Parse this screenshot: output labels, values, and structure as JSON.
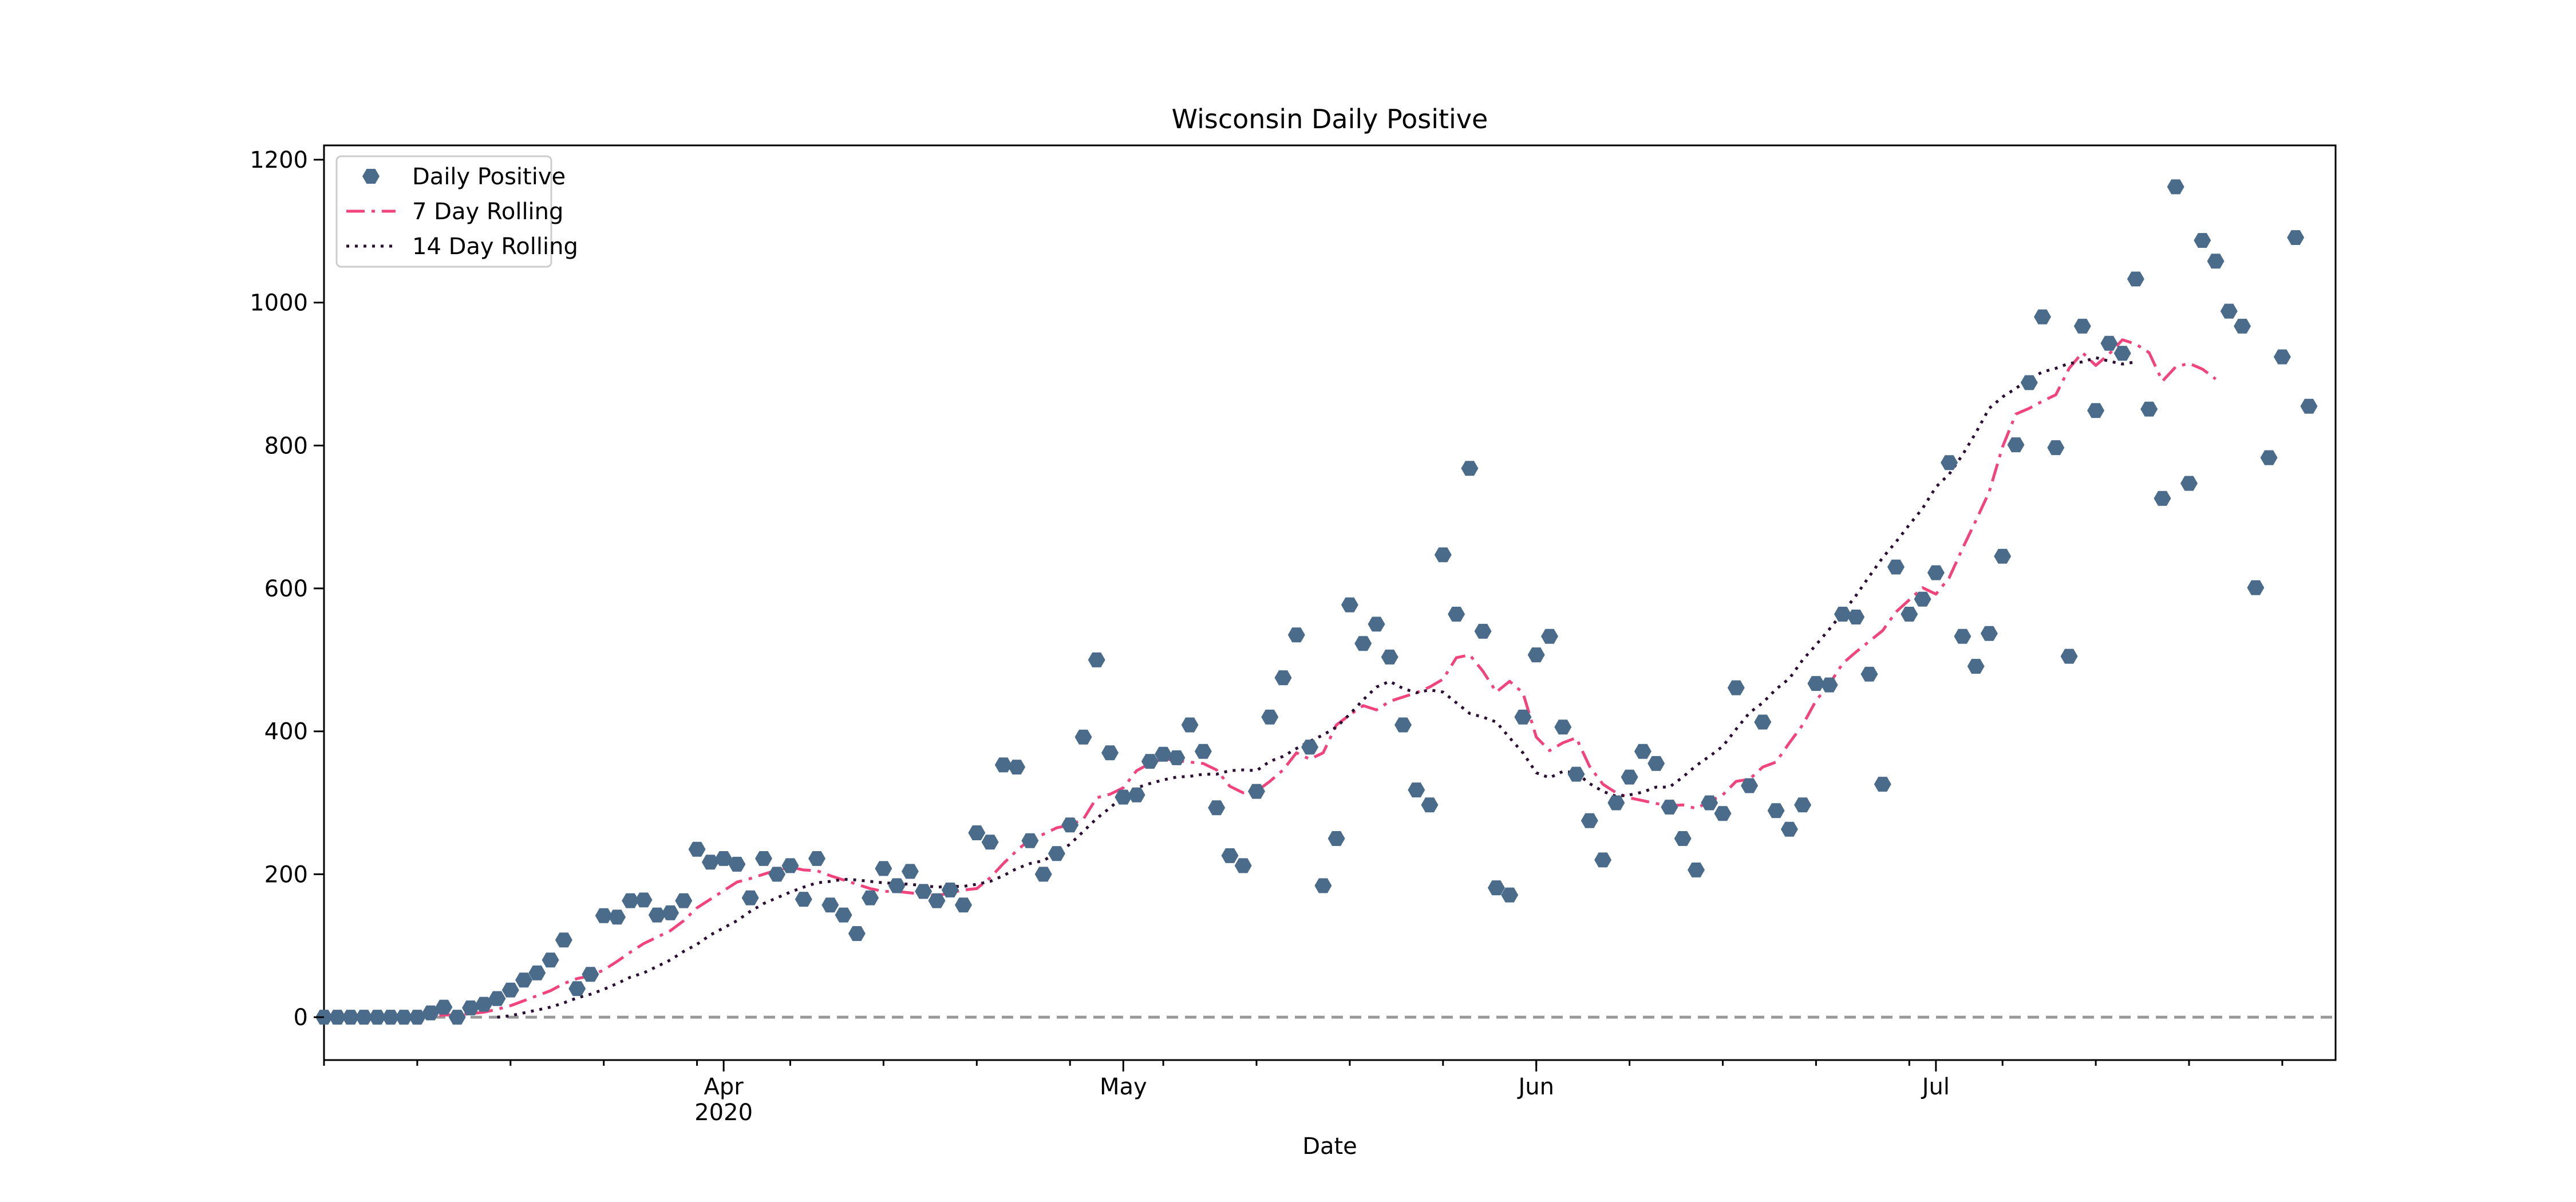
{
  "chart_data": {
    "type": "scatter",
    "title": "Wisconsin Daily Positive",
    "xlabel": "Date",
    "ylabel": "",
    "x_start": "2020-03-02",
    "x_range": [
      "2020-03-02",
      "2020-07-31"
    ],
    "ylim": [
      -60,
      1220
    ],
    "yticks": [
      0,
      200,
      400,
      600,
      800,
      1000,
      1200
    ],
    "xticks": [
      {
        "date": "2020-04-01",
        "label": "Apr",
        "sublabel": "2020"
      },
      {
        "date": "2020-05-01",
        "label": "May",
        "sublabel": ""
      },
      {
        "date": "2020-06-01",
        "label": "Jun",
        "sublabel": ""
      },
      {
        "date": "2020-07-01",
        "label": "Jul",
        "sublabel": ""
      }
    ],
    "reference_line": {
      "y": 0,
      "style": "dashed",
      "color": "#999999"
    },
    "legend": {
      "position": "upper-left"
    },
    "series": [
      {
        "name": "Daily Positive",
        "kind": "points",
        "color": "#4a6b8a",
        "values": [
          0,
          0,
          0,
          0,
          0,
          0,
          0,
          0,
          6,
          14,
          0,
          13,
          18,
          26,
          38,
          52,
          62,
          80,
          108,
          40,
          60,
          142,
          140,
          163,
          164,
          143,
          146,
          163,
          235,
          217,
          222,
          214,
          167,
          222,
          200,
          212,
          165,
          222,
          157,
          143,
          117,
          167,
          208,
          184,
          204,
          176,
          163,
          178,
          157,
          258,
          245,
          353,
          350,
          247,
          200,
          229,
          269,
          392,
          500,
          370,
          308,
          311,
          358,
          368,
          363,
          409,
          372,
          293,
          226,
          212,
          316,
          420,
          475,
          535,
          378,
          184,
          250,
          577,
          523,
          550,
          504,
          409,
          318,
          297,
          647,
          564,
          768,
          540,
          181,
          171,
          420,
          507,
          533,
          406,
          340,
          275,
          220,
          300,
          336,
          372,
          355,
          294,
          250,
          206,
          300,
          285,
          461,
          324,
          413,
          289,
          263,
          297,
          467,
          465,
          564,
          560,
          480,
          326,
          630,
          564,
          585,
          622,
          776,
          533,
          491,
          537,
          645,
          801,
          888,
          980,
          797,
          505,
          967,
          849,
          943,
          929,
          1033,
          851,
          726,
          1162,
          747,
          1087,
          1058,
          988,
          967,
          601,
          783,
          924,
          1091,
          855
        ]
      },
      {
        "name": "7 Day Rolling",
        "kind": "line",
        "style": "dashdot",
        "color": "#f2447c",
        "values": [
          null,
          null,
          null,
          null,
          null,
          null,
          0,
          0,
          1,
          3,
          3,
          5,
          7,
          11,
          16,
          23,
          30,
          37,
          47,
          54,
          58,
          66,
          78,
          91,
          103,
          112,
          121,
          135,
          153,
          165,
          177,
          189,
          194,
          200,
          206,
          210,
          206,
          205,
          198,
          192,
          186,
          180,
          176,
          176,
          174,
          172,
          170,
          174,
          178,
          180,
          195,
          215,
          233,
          249,
          256,
          265,
          269,
          277,
          307,
          312,
          321,
          345,
          355,
          362,
          359,
          357,
          355,
          346,
          323,
          314,
          316,
          330,
          346,
          370,
          361,
          370,
          409,
          423,
          436,
          430,
          442,
          448,
          454,
          462,
          473,
          503,
          507,
          484,
          455,
          470,
          454,
          392,
          373,
          384,
          391,
          351,
          326,
          314,
          307,
          303,
          299,
          296,
          297,
          292,
          302,
          311,
          330,
          333,
          350,
          357,
          384,
          409,
          443,
          466,
          495,
          511,
          526,
          541,
          567,
          584,
          601,
          592,
          615,
          656,
          695,
          735,
          798,
          844,
          852,
          862,
          871,
          908,
          930,
          912,
          928,
          948,
          942,
          930,
          890,
          910,
          915,
          907,
          893
        ]
      },
      {
        "name": "14 Day Rolling",
        "kind": "line",
        "style": "dotted",
        "color": "#2a0f33",
        "values": [
          null,
          null,
          null,
          null,
          null,
          null,
          null,
          null,
          null,
          null,
          null,
          null,
          null,
          0,
          2,
          6,
          10,
          14,
          20,
          27,
          32,
          39,
          47,
          56,
          62,
          71,
          80,
          92,
          102,
          115,
          125,
          135,
          148,
          159,
          167,
          175,
          182,
          188,
          190,
          193,
          192,
          190,
          188,
          187,
          186,
          184,
          182,
          183,
          183,
          186,
          190,
          198,
          208,
          215,
          219,
          230,
          242,
          260,
          278,
          293,
          309,
          321,
          327,
          332,
          336,
          337,
          340,
          340,
          345,
          346,
          345,
          358,
          365,
          376,
          386,
          395,
          406,
          424,
          444,
          462,
          470,
          460,
          454,
          458,
          455,
          440,
          425,
          420,
          413,
          391,
          370,
          342,
          335,
          344,
          342,
          327,
          316,
          309,
          311,
          315,
          322,
          322,
          336,
          352,
          365,
          379,
          403,
          426,
          440,
          459,
          474,
          500,
          521,
          543,
          566,
          590,
          617,
          643,
          665,
          689,
          712,
          742,
          760,
          787,
          818,
          852,
          868,
          880,
          893,
          903,
          908,
          915,
          917,
          923,
          918,
          914,
          917
        ]
      }
    ]
  }
}
